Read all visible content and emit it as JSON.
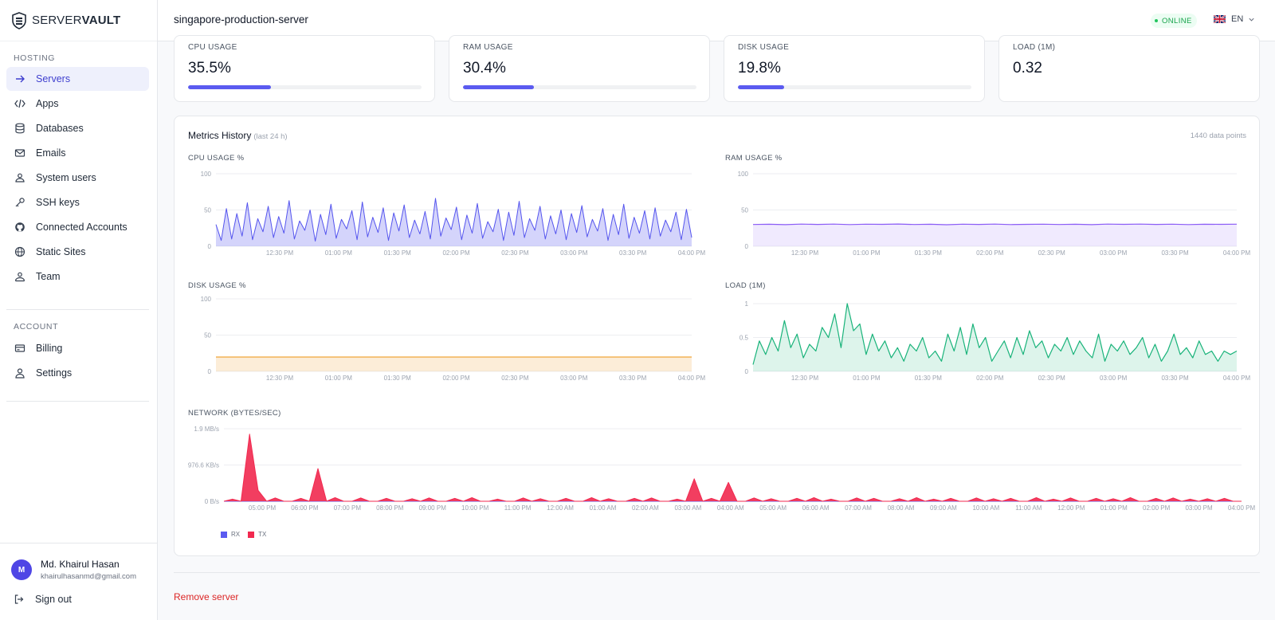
{
  "app": {
    "brand_light": "SERVER",
    "brand_bold": "VAULT"
  },
  "sidebar": {
    "sections": [
      {
        "title": "HOSTING",
        "items": [
          {
            "label": "Servers",
            "icon": "arrow-right-icon",
            "active": true
          },
          {
            "label": "Apps",
            "icon": "code-icon"
          },
          {
            "label": "Databases",
            "icon": "database-icon"
          },
          {
            "label": "Emails",
            "icon": "mail-icon"
          },
          {
            "label": "System users",
            "icon": "users-icon"
          },
          {
            "label": "SSH keys",
            "icon": "key-icon"
          },
          {
            "label": "Connected Accounts",
            "icon": "github-icon"
          },
          {
            "label": "Static Sites",
            "icon": "globe-icon"
          },
          {
            "label": "Team",
            "icon": "team-icon"
          }
        ]
      },
      {
        "title": "ACCOUNT",
        "items": [
          {
            "label": "Billing",
            "icon": "credit-card-icon"
          },
          {
            "label": "Settings",
            "icon": "user-icon"
          }
        ]
      }
    ],
    "user": {
      "initial": "M",
      "name": "Md. Khairul Hasan",
      "email": "khairulhasanmd@gmail.com"
    },
    "signout_label": "Sign out"
  },
  "header": {
    "server_name": "singapore-production-server",
    "status": "ONLINE",
    "language": "EN"
  },
  "stats": [
    {
      "label": "CPU USAGE",
      "value": "35.5%",
      "progress": 0.355
    },
    {
      "label": "RAM USAGE",
      "value": "30.4%",
      "progress": 0.304
    },
    {
      "label": "DISK USAGE",
      "value": "19.8%",
      "progress": 0.198
    },
    {
      "label": "LOAD (1M)",
      "value": "0.32"
    }
  ],
  "metrics": {
    "title": "Metrics History",
    "subtitle": "(last 24 h)",
    "data_points_label": "1440 data points"
  },
  "colors": {
    "cpu": "#5454ee",
    "ram": "#8b5cf6",
    "disk": "#f0a63a",
    "load": "#19b37a",
    "rx": "#5b5bf0",
    "tx": "#f1294f"
  },
  "chart_data": [
    {
      "type": "line",
      "title": "CPU USAGE %",
      "ylim": [
        0,
        100
      ],
      "yticks": [
        "0",
        "50",
        "100"
      ],
      "xticks": [
        "12:30 PM",
        "01:00 PM",
        "01:30 PM",
        "02:00 PM",
        "02:30 PM",
        "03:00 PM",
        "03:30 PM",
        "04:00 PM"
      ],
      "series": [
        {
          "values": [
            30,
            8,
            52,
            10,
            45,
            14,
            60,
            9,
            38,
            20,
            55,
            12,
            41,
            18,
            63,
            10,
            35,
            22,
            50,
            7,
            44,
            16,
            58,
            11,
            37,
            24,
            49,
            9,
            61,
            13,
            40,
            19,
            53,
            8,
            46,
            21,
            57,
            12,
            36,
            17,
            48,
            10,
            66,
            14,
            39,
            23,
            54,
            9,
            43,
            18,
            59,
            11,
            34,
            20,
            51,
            8,
            47,
            15,
            62,
            12,
            38,
            22,
            55,
            10,
            42,
            17,
            50,
            9,
            45,
            19,
            56,
            13,
            37,
            21,
            52,
            8,
            44,
            16,
            58,
            11,
            40,
            18,
            49,
            10,
            53,
            14,
            36,
            20,
            47,
            9,
            51,
            12
          ]
        }
      ]
    },
    {
      "type": "area",
      "title": "RAM USAGE %",
      "ylim": [
        0,
        100
      ],
      "yticks": [
        "0",
        "50",
        "100"
      ],
      "xticks": [
        "12:30 PM",
        "01:00 PM",
        "01:30 PM",
        "02:00 PM",
        "02:30 PM",
        "03:00 PM",
        "03:30 PM",
        "04:00 PM"
      ],
      "series": [
        {
          "values": [
            30,
            30.3,
            29.8,
            30.5,
            30.1,
            30.6,
            29.9,
            30.4,
            30.2,
            30.7,
            30,
            30.3,
            29.7,
            30.4,
            30.1,
            30.5,
            29.9,
            30.2,
            30.4,
            30,
            30.3,
            29.8,
            30.5,
            30.2,
            30.6,
            30.1,
            30.4,
            29.9,
            30.3,
            30.2,
            30.4
          ]
        }
      ]
    },
    {
      "type": "area",
      "title": "DISK USAGE %",
      "ylim": [
        0,
        100
      ],
      "yticks": [
        "0",
        "50",
        "100"
      ],
      "xticks": [
        "12:30 PM",
        "01:00 PM",
        "01:30 PM",
        "02:00 PM",
        "02:30 PM",
        "03:00 PM",
        "03:30 PM",
        "04:00 PM"
      ],
      "series": [
        {
          "values": [
            19.8,
            19.8
          ]
        }
      ]
    },
    {
      "type": "area",
      "title": "LOAD (1M)",
      "ylim": [
        0,
        1
      ],
      "yticks": [
        "0",
        "0.5",
        "1"
      ],
      "xticks": [
        "12:30 PM",
        "01:00 PM",
        "01:30 PM",
        "02:00 PM",
        "02:30 PM",
        "03:00 PM",
        "03:30 PM",
        "04:00 PM"
      ],
      "series": [
        {
          "values": [
            0.1,
            0.45,
            0.25,
            0.5,
            0.3,
            0.75,
            0.35,
            0.55,
            0.2,
            0.4,
            0.3,
            0.65,
            0.5,
            0.85,
            0.35,
            1.0,
            0.6,
            0.7,
            0.25,
            0.55,
            0.3,
            0.45,
            0.2,
            0.35,
            0.15,
            0.4,
            0.3,
            0.5,
            0.2,
            0.3,
            0.15,
            0.55,
            0.3,
            0.65,
            0.25,
            0.7,
            0.35,
            0.5,
            0.15,
            0.3,
            0.45,
            0.2,
            0.5,
            0.25,
            0.6,
            0.35,
            0.45,
            0.2,
            0.4,
            0.3,
            0.5,
            0.25,
            0.45,
            0.3,
            0.2,
            0.55,
            0.15,
            0.4,
            0.3,
            0.45,
            0.25,
            0.35,
            0.5,
            0.2,
            0.4,
            0.15,
            0.3,
            0.55,
            0.25,
            0.35,
            0.2,
            0.45,
            0.25,
            0.3,
            0.15,
            0.3,
            0.25,
            0.3
          ]
        }
      ]
    },
    {
      "type": "area",
      "title": "NETWORK (BYTES/SEC)",
      "yticks": [
        "0 B/s",
        "976.6 KB/s",
        "1.9 MB/s"
      ],
      "ylim": [
        0,
        2000
      ],
      "xticks": [
        "05:00 PM",
        "06:00 PM",
        "07:00 PM",
        "08:00 PM",
        "09:00 PM",
        "10:00 PM",
        "11:00 PM",
        "12:00 AM",
        "01:00 AM",
        "02:00 AM",
        "03:00 AM",
        "04:00 AM",
        "05:00 AM",
        "06:00 AM",
        "07:00 AM",
        "08:00 AM",
        "09:00 AM",
        "10:00 AM",
        "11:00 AM",
        "12:00 PM",
        "01:00 PM",
        "02:00 PM",
        "03:00 PM",
        "04:00 PM"
      ],
      "series": [
        {
          "name": "RX",
          "values": [
            0,
            0,
            0,
            0,
            0,
            0,
            0,
            0,
            0,
            0,
            0,
            0,
            0,
            0,
            0,
            0,
            0,
            0,
            0,
            0,
            0,
            0,
            0,
            0,
            0,
            0,
            0,
            0,
            0,
            0,
            0,
            0,
            0,
            0,
            0,
            0,
            0,
            0,
            0,
            0,
            0,
            0,
            0,
            0,
            0,
            0,
            0,
            0,
            0,
            0,
            0,
            0,
            0,
            0,
            0,
            0,
            0,
            0,
            0,
            0,
            0,
            0,
            0,
            0,
            0,
            0,
            0,
            0,
            0,
            0,
            0,
            0,
            0,
            0,
            0,
            0,
            0,
            0,
            0,
            0,
            0,
            0,
            0,
            0,
            0,
            0,
            0,
            0,
            0,
            0,
            0,
            0,
            0,
            0,
            0,
            0,
            0,
            0,
            0,
            0,
            0,
            0,
            0,
            0,
            0,
            0,
            0,
            0,
            0,
            0,
            0,
            0,
            0,
            0,
            0,
            0,
            0,
            0,
            0,
            0
          ]
        },
        {
          "name": "TX",
          "values": [
            0,
            60,
            0,
            1850,
            300,
            0,
            90,
            0,
            0,
            80,
            0,
            900,
            0,
            100,
            0,
            0,
            90,
            0,
            0,
            80,
            0,
            0,
            70,
            0,
            90,
            0,
            0,
            80,
            0,
            100,
            0,
            0,
            60,
            0,
            0,
            90,
            0,
            70,
            0,
            0,
            80,
            0,
            0,
            100,
            0,
            70,
            0,
            0,
            80,
            0,
            90,
            0,
            0,
            60,
            0,
            620,
            0,
            80,
            0,
            520,
            0,
            0,
            90,
            0,
            70,
            0,
            0,
            80,
            0,
            100,
            0,
            60,
            0,
            0,
            90,
            0,
            80,
            0,
            0,
            70,
            0,
            100,
            0,
            60,
            0,
            80,
            0,
            0,
            90,
            0,
            70,
            0,
            80,
            0,
            0,
            100,
            0,
            60,
            0,
            90,
            0,
            0,
            80,
            0,
            70,
            0,
            100,
            0,
            0,
            80,
            0,
            90,
            0,
            60,
            0,
            70,
            0,
            80,
            0,
            0
          ]
        }
      ]
    }
  ],
  "actions": {
    "remove_server": "Remove server"
  }
}
